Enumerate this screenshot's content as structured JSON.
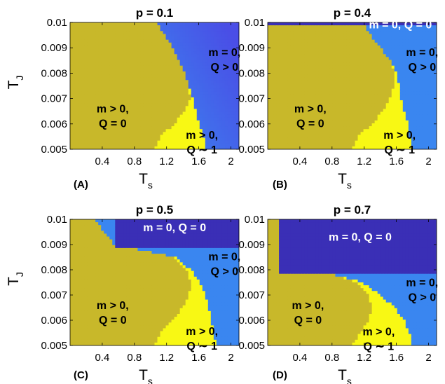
{
  "colors": {
    "olive": "#c8b82a",
    "yellow": "#f8f814",
    "blue": "#3a86f0",
    "indigo": "#3a2fb6",
    "violet": "#4a4ee6"
  },
  "common": {
    "xlabel": "T",
    "xlabel_sub": "s",
    "ylabel": "T",
    "ylabel_sub": "J"
  },
  "chart_data": [
    {
      "type": "heatmap",
      "panel": "(A)",
      "title": "p = 0.1",
      "xlim": [
        0.0,
        2.1
      ],
      "ylim": [
        0.005,
        0.01
      ],
      "xticks": [
        "0.4",
        "0.8",
        "1.2",
        "1.6",
        "2"
      ],
      "yticks": [
        "0.005",
        "0.006",
        "0.007",
        "0.008",
        "0.009",
        "0.01"
      ],
      "phase_boundaries": {
        "T_J": [
          0.01,
          0.0095,
          0.009,
          0.0085,
          0.008,
          0.0075,
          0.007,
          0.0065,
          0.006,
          0.0055,
          0.005
        ],
        "olive_edge": [
          1.07,
          1.18,
          1.28,
          1.36,
          1.42,
          1.47,
          1.5,
          1.42,
          1.3,
          1.12,
          1.05
        ],
        "yellow_edge": [
          1.07,
          1.18,
          1.28,
          1.36,
          1.42,
          1.47,
          1.53,
          1.56,
          1.6,
          1.66,
          1.7
        ]
      },
      "top_band": null,
      "regions": [
        {
          "color": "olive",
          "phase": "m > 0, Q = 0"
        },
        {
          "color": "yellow",
          "phase": "m > 0, Q ~ 1"
        },
        {
          "color": "violet",
          "phase": "m = 0, Q > 0"
        }
      ],
      "annotations": [
        {
          "lines": [
            "m = 0,",
            "Q > 0"
          ],
          "x": 1.92,
          "y": 0.00868,
          "color": "#000000"
        },
        {
          "lines": [
            "m > 0,",
            "Q = 0"
          ],
          "x": 0.53,
          "y": 0.00645,
          "color": "#000000"
        },
        {
          "lines": [
            "m > 0,",
            "Q ∼ 1"
          ],
          "x": 1.64,
          "y": 0.00542,
          "color": "#000000"
        }
      ]
    },
    {
      "type": "heatmap",
      "panel": "(B)",
      "title": "p = 0.4",
      "xlim": [
        0.0,
        2.1
      ],
      "ylim": [
        0.005,
        0.01
      ],
      "xticks": [
        "0.4",
        "0.8",
        "1.2",
        "1.6",
        "2"
      ],
      "yticks": [
        "0.005",
        "0.006",
        "0.007",
        "0.008",
        "0.009",
        "0.01"
      ],
      "phase_boundaries": {
        "T_J": [
          0.01,
          0.0095,
          0.009,
          0.0085,
          0.008,
          0.0075,
          0.007,
          0.0065,
          0.006,
          0.0055,
          0.005
        ],
        "olive_edge": [
          1.18,
          1.28,
          1.4,
          1.52,
          1.58,
          1.57,
          1.52,
          1.43,
          1.3,
          1.12,
          1.05
        ],
        "yellow_edge": [
          1.18,
          1.28,
          1.4,
          1.52,
          1.6,
          1.64,
          1.66,
          1.7,
          1.74,
          1.76,
          1.8
        ]
      },
      "top_band": {
        "ymin": 0.00985,
        "color": "indigo"
      },
      "regions": [
        {
          "color": "olive",
          "phase": "m > 0, Q = 0"
        },
        {
          "color": "yellow",
          "phase": "m > 0, Q ~ 1"
        },
        {
          "color": "blue",
          "phase": "m = 0, Q > 0"
        },
        {
          "color": "indigo",
          "phase": "m = 0, Q = 0"
        }
      ],
      "annotations": [
        {
          "lines": [
            "m = 0, Q = 0"
          ],
          "x": 1.65,
          "y": 0.00977,
          "color": "#ffffff"
        },
        {
          "lines": [
            "m = 0,",
            "Q > 0"
          ],
          "x": 1.92,
          "y": 0.00868,
          "color": "#000000"
        },
        {
          "lines": [
            "m > 0,",
            "Q = 0"
          ],
          "x": 0.53,
          "y": 0.00645,
          "color": "#000000"
        },
        {
          "lines": [
            "m > 0,",
            "Q ∼ 1"
          ],
          "x": 1.64,
          "y": 0.00542,
          "color": "#000000"
        }
      ]
    },
    {
      "type": "heatmap",
      "panel": "(C)",
      "title": "p = 0.5",
      "xlim": [
        0.0,
        2.1
      ],
      "ylim": [
        0.005,
        0.01
      ],
      "xticks": [
        "0.4",
        "0.8",
        "1.2",
        "1.6",
        "2"
      ],
      "yticks": [
        "0.005",
        "0.006",
        "0.007",
        "0.008",
        "0.009",
        "0.01"
      ],
      "phase_boundaries": {
        "T_J": [
          0.01,
          0.0095,
          0.009,
          0.0085,
          0.008,
          0.0075,
          0.007,
          0.0065,
          0.006,
          0.0055,
          0.005
        ],
        "olive_edge": [
          0.3,
          0.42,
          0.55,
          1.3,
          1.45,
          1.5,
          1.48,
          1.4,
          1.28,
          1.12,
          1.05
        ],
        "yellow_edge": [
          0.3,
          0.42,
          0.55,
          1.3,
          1.5,
          1.62,
          1.68,
          1.72,
          1.76,
          1.78,
          1.82
        ]
      },
      "top_band": {
        "ymin": 0.0089,
        "xmin": 0.56,
        "color": "indigo"
      },
      "regions": [
        {
          "color": "olive",
          "phase": "m > 0, Q = 0"
        },
        {
          "color": "yellow",
          "phase": "m > 0, Q ~ 1"
        },
        {
          "color": "blue",
          "phase": "m = 0, Q > 0"
        },
        {
          "color": "indigo",
          "phase": "m = 0, Q = 0"
        }
      ],
      "annotations": [
        {
          "lines": [
            "m = 0, Q = 0"
          ],
          "x": 1.3,
          "y": 0.00953,
          "color": "#ffffff"
        },
        {
          "lines": [
            "m = 0,",
            "Q > 0"
          ],
          "x": 1.92,
          "y": 0.00838,
          "color": "#000000"
        },
        {
          "lines": [
            "m > 0,",
            "Q = 0"
          ],
          "x": 0.53,
          "y": 0.00645,
          "color": "#000000"
        },
        {
          "lines": [
            "m > 0,",
            "Q ∼ 1"
          ],
          "x": 1.64,
          "y": 0.00542,
          "color": "#000000"
        }
      ]
    },
    {
      "type": "heatmap",
      "panel": "(D)",
      "title": "p = 0.7",
      "xlim": [
        0.0,
        2.1
      ],
      "ylim": [
        0.005,
        0.01
      ],
      "xticks": [
        "0.4",
        "0.8",
        "1.2",
        "1.6",
        "2"
      ],
      "yticks": [
        "0.005",
        "0.006",
        "0.007",
        "0.008",
        "0.009",
        "0.01"
      ],
      "phase_boundaries": {
        "T_J": [
          0.01,
          0.0095,
          0.009,
          0.0085,
          0.008,
          0.0075,
          0.007,
          0.0065,
          0.006,
          0.0055,
          0.005
        ],
        "olive_edge": [
          0.16,
          0.18,
          0.22,
          0.25,
          0.6,
          1.12,
          1.25,
          1.3,
          1.25,
          1.15,
          1.05
        ],
        "yellow_edge": [
          0.16,
          0.18,
          0.22,
          0.25,
          0.6,
          1.18,
          1.4,
          1.58,
          1.7,
          1.76,
          1.8
        ]
      },
      "top_band": {
        "ymin": 0.0078,
        "xmin": 0.14,
        "color": "indigo"
      },
      "regions": [
        {
          "color": "olive",
          "phase": "m > 0, Q = 0"
        },
        {
          "color": "yellow",
          "phase": "m > 0, Q ~ 1"
        },
        {
          "color": "blue",
          "phase": "m = 0, Q > 0"
        },
        {
          "color": "indigo",
          "phase": "m = 0, Q = 0"
        }
      ],
      "annotations": [
        {
          "lines": [
            "m = 0, Q = 0"
          ],
          "x": 1.15,
          "y": 0.00915,
          "color": "#ffffff"
        },
        {
          "lines": [
            "m = 0,",
            "Q > 0"
          ],
          "x": 1.92,
          "y": 0.00735,
          "color": "#000000"
        },
        {
          "lines": [
            "m > 0,",
            "Q = 0"
          ],
          "x": 0.5,
          "y": 0.00645,
          "color": "#000000"
        },
        {
          "lines": [
            "m > 0,",
            "Q ∼ 1"
          ],
          "x": 1.38,
          "y": 0.0054,
          "color": "#000000"
        }
      ]
    }
  ]
}
